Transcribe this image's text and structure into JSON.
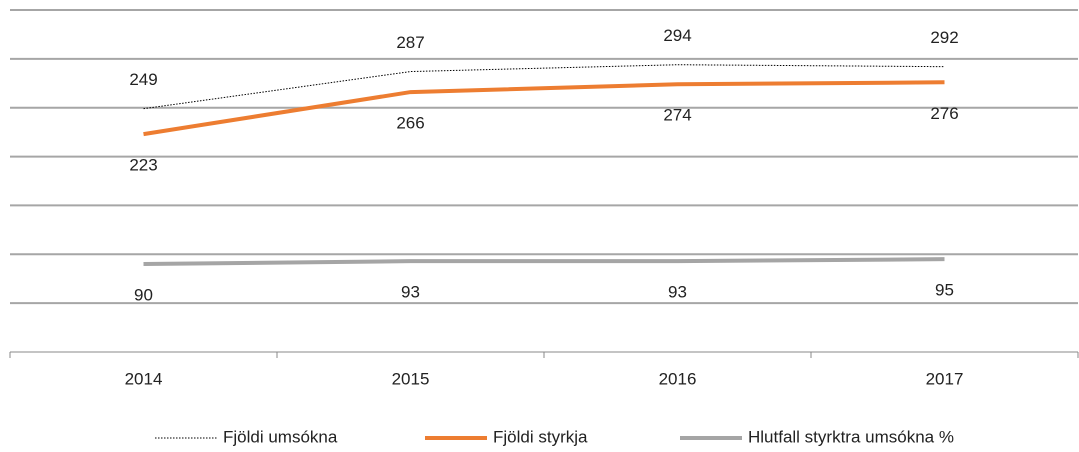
{
  "chart_data": {
    "type": "line",
    "categories": [
      "2014",
      "2015",
      "2016",
      "2017"
    ],
    "series": [
      {
        "name": "Fjöldi umsókna",
        "color": "#000000",
        "values": [
          249,
          287,
          294,
          292
        ]
      },
      {
        "name": "Fjöldi styrkja",
        "color": "#ed7d31",
        "values": [
          223,
          266,
          274,
          276
        ]
      },
      {
        "name": "Hlutfall styrktra umsókna %",
        "color": "#a5a5a5",
        "values": [
          90,
          93,
          93,
          95
        ]
      }
    ],
    "ylim": [
      0,
      350
    ],
    "yticks": [
      0,
      50,
      100,
      150,
      200,
      250,
      300,
      350
    ],
    "grid": true,
    "legend": "bottom"
  }
}
